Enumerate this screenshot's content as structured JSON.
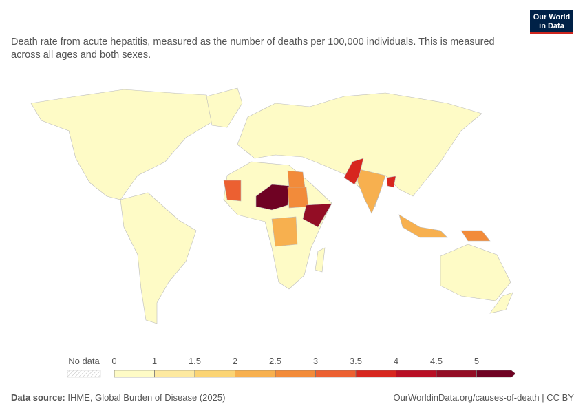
{
  "header": {
    "logo": "Our World in Data",
    "subtitle": "Death rate from acute hepatitis, measured as the number of deaths per 100,000 individuals. This is measured across all ages and both sexes."
  },
  "legend": {
    "no_data": "No data",
    "ticks": [
      0,
      1,
      1.5,
      2,
      2.5,
      3,
      3.5,
      4,
      4.5,
      5
    ],
    "colors": [
      "#fefbc6",
      "#fde9a0",
      "#fbd474",
      "#f7b04f",
      "#f28b3a",
      "#ec6031",
      "#d7261e",
      "#b80f24",
      "#930d25",
      "#6f0223"
    ]
  },
  "footer": {
    "source_label": "Data source:",
    "source": "IHME, Global Burden of Disease (2025)",
    "url": "OurWorldinData.org/causes-of-death | CC BY"
  }
}
